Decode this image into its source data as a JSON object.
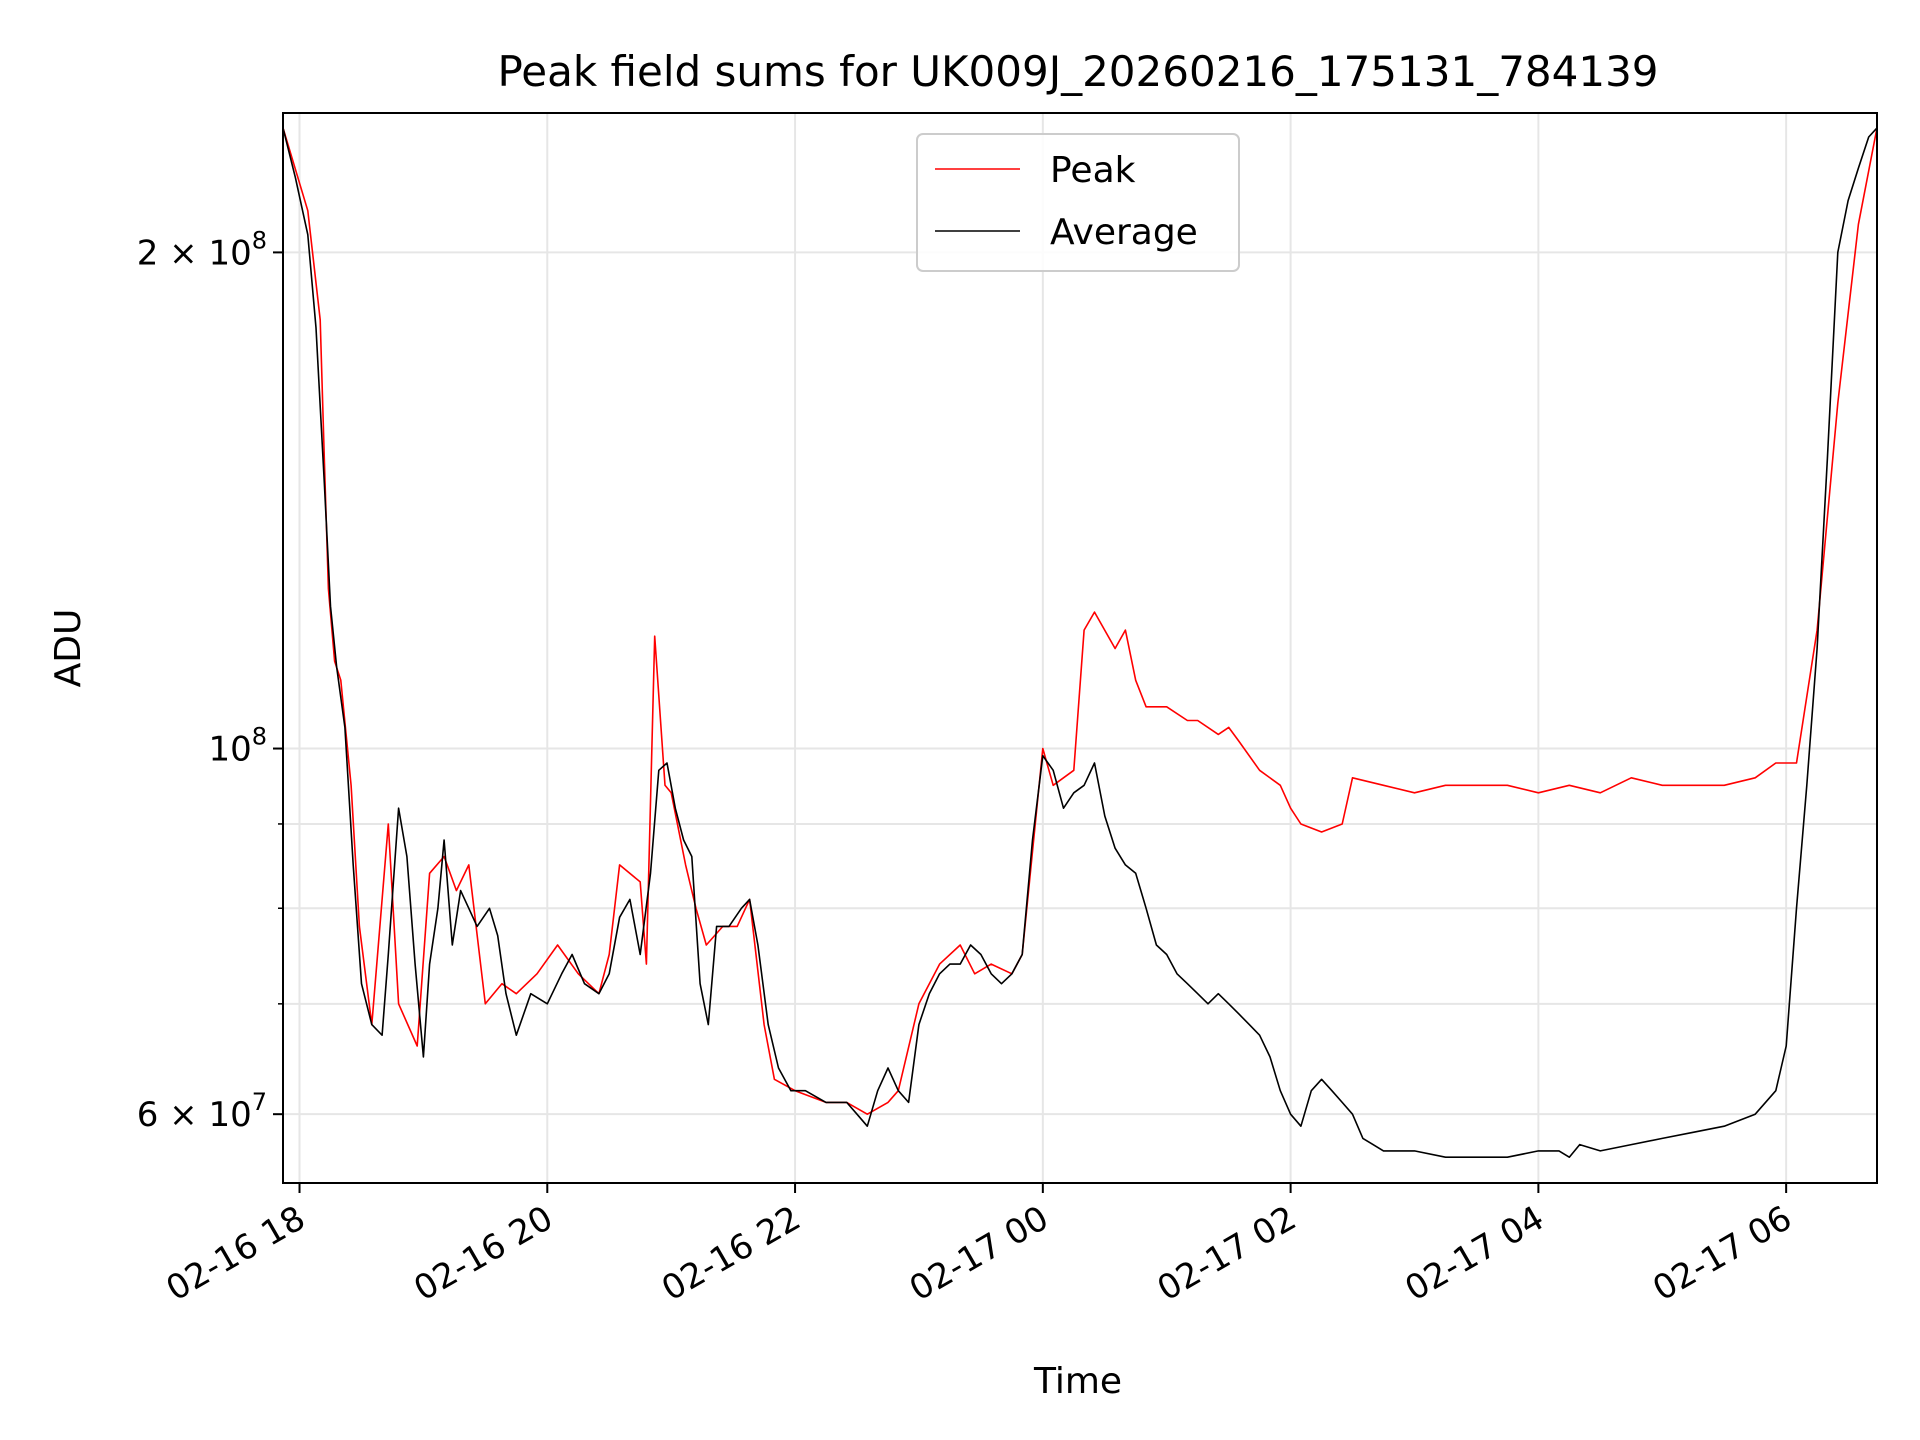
{
  "colors": {
    "peak": "#ff0000",
    "average": "#000000",
    "grid": "#e6e6e6",
    "axis": "#000000",
    "legend_border": "#cccccc"
  },
  "chart_data": {
    "type": "line",
    "title": "Peak field sums for UK009J_20260216_175131_784139",
    "xlabel": "Time",
    "ylabel": "ADU",
    "y_scale": "log",
    "grid": true,
    "legend_position": "upper center",
    "xlim": [
      "02-16 17:52",
      "02-17 06:44"
    ],
    "ylim": [
      54500000,
      243000000
    ],
    "x_ticks": [
      {
        "at": "02-16 18:00",
        "label": "02-16 18"
      },
      {
        "at": "02-16 20:00",
        "label": "02-16 20"
      },
      {
        "at": "02-16 22:00",
        "label": "02-16 22"
      },
      {
        "at": "02-17 00:00",
        "label": "02-17 00"
      },
      {
        "at": "02-17 02:00",
        "label": "02-17 02"
      },
      {
        "at": "02-17 04:00",
        "label": "02-17 04"
      },
      {
        "at": "02-17 06:00",
        "label": "02-17 06"
      }
    ],
    "y_major_ticks": [
      {
        "value": 60000000,
        "label_mantissa": "6",
        "label_times": "×",
        "label_base": "10",
        "label_exp": "7"
      },
      {
        "value": 100000000,
        "label_mantissa": "",
        "label_times": "",
        "label_base": "10",
        "label_exp": "8"
      },
      {
        "value": 200000000,
        "label_mantissa": "2",
        "label_times": "×",
        "label_base": "10",
        "label_exp": "8"
      }
    ],
    "y_minor_ticks": [
      70000000,
      80000000,
      90000000
    ],
    "series": [
      {
        "name": "Peak",
        "color": "#ff0000",
        "x": [
          "02-16 17:52",
          "02-16 18:04",
          "02-16 18:10",
          "02-16 18:12",
          "02-16 18:14",
          "02-16 18:17",
          "02-16 18:20",
          "02-16 18:25",
          "02-16 18:29",
          "02-16 18:35",
          "02-16 18:43",
          "02-16 18:48",
          "02-16 18:57",
          "02-16 19:03",
          "02-16 19:10",
          "02-16 19:16",
          "02-16 19:22",
          "02-16 19:30",
          "02-16 19:38",
          "02-16 19:45",
          "02-16 19:55",
          "02-16 20:05",
          "02-16 20:15",
          "02-16 20:25",
          "02-16 20:30",
          "02-16 20:35",
          "02-16 20:45",
          "02-16 20:48",
          "02-16 20:52",
          "02-16 20:57",
          "02-16 21:00",
          "02-16 21:07",
          "02-16 21:12",
          "02-16 21:17",
          "02-16 21:25",
          "02-16 21:32",
          "02-16 21:38",
          "02-16 21:45",
          "02-16 21:50",
          "02-16 22:00",
          "02-16 22:15",
          "02-16 22:25",
          "02-16 22:35",
          "02-16 22:45",
          "02-16 22:50",
          "02-16 23:00",
          "02-16 23:10",
          "02-16 23:20",
          "02-16 23:27",
          "02-16 23:35",
          "02-16 23:45",
          "02-16 23:50",
          "02-17 00:00",
          "02-17 00:05",
          "02-17 00:15",
          "02-17 00:20",
          "02-17 00:25",
          "02-17 00:35",
          "02-17 00:40",
          "02-17 00:45",
          "02-17 00:50",
          "02-17 01:00",
          "02-17 01:10",
          "02-17 01:15",
          "02-17 01:25",
          "02-17 01:30",
          "02-17 01:35",
          "02-17 01:45",
          "02-17 01:55",
          "02-17 02:00",
          "02-17 02:05",
          "02-17 02:15",
          "02-17 02:25",
          "02-17 02:30",
          "02-17 02:45",
          "02-17 03:00",
          "02-17 03:15",
          "02-17 03:30",
          "02-17 03:45",
          "02-17 04:00",
          "02-17 04:15",
          "02-17 04:30",
          "02-17 04:45",
          "02-17 05:00",
          "02-17 05:15",
          "02-17 05:30",
          "02-17 05:45",
          "02-17 05:55",
          "02-17 06:05",
          "02-17 06:15",
          "02-17 06:25",
          "02-17 06:35",
          "02-17 06:44"
        ],
        "values": [
          238000000,
          212000000,
          182000000,
          150000000,
          125000000,
          113000000,
          110000000,
          95000000,
          78000000,
          68000000,
          90000000,
          70000000,
          66000000,
          84000000,
          86000000,
          82000000,
          85000000,
          70000000,
          72000000,
          71000000,
          73000000,
          76000000,
          73000000,
          71000000,
          75000000,
          85000000,
          83000000,
          74000000,
          117000000,
          95000000,
          94000000,
          85000000,
          80000000,
          76000000,
          78000000,
          78000000,
          81000000,
          68000000,
          63000000,
          62000000,
          61000000,
          61000000,
          60000000,
          61000000,
          62000000,
          70000000,
          74000000,
          76000000,
          73000000,
          74000000,
          73000000,
          75000000,
          100000000,
          95000000,
          97000000,
          118000000,
          121000000,
          115000000,
          118000000,
          110000000,
          106000000,
          106000000,
          104000000,
          104000000,
          102000000,
          103000000,
          101000000,
          97000000,
          95000000,
          92000000,
          90000000,
          89000000,
          90000000,
          96000000,
          95000000,
          94000000,
          95000000,
          95000000,
          95000000,
          94000000,
          95000000,
          94000000,
          96000000,
          95000000,
          95000000,
          95000000,
          96000000,
          98000000,
          98000000,
          118000000,
          162000000,
          208000000,
          238000000
        ]
      },
      {
        "name": "Average",
        "color": "#000000",
        "x": [
          "02-16 17:52",
          "02-16 17:58",
          "02-16 18:04",
          "02-16 18:08",
          "02-16 18:12",
          "02-16 18:15",
          "02-16 18:18",
          "02-16 18:22",
          "02-16 18:26",
          "02-16 18:30",
          "02-16 18:35",
          "02-16 18:40",
          "02-16 18:43",
          "02-16 18:48",
          "02-16 18:52",
          "02-16 18:56",
          "02-16 19:00",
          "02-16 19:03",
          "02-16 19:07",
          "02-16 19:10",
          "02-16 19:14",
          "02-16 19:18",
          "02-16 19:22",
          "02-16 19:26",
          "02-16 19:32",
          "02-16 19:36",
          "02-16 19:40",
          "02-16 19:45",
          "02-16 19:52",
          "02-16 20:00",
          "02-16 20:07",
          "02-16 20:12",
          "02-16 20:18",
          "02-16 20:25",
          "02-16 20:30",
          "02-16 20:35",
          "02-16 20:40",
          "02-16 20:45",
          "02-16 20:50",
          "02-16 20:54",
          "02-16 20:58",
          "02-16 21:02",
          "02-16 21:06",
          "02-16 21:10",
          "02-16 21:14",
          "02-16 21:18",
          "02-16 21:22",
          "02-16 21:28",
          "02-16 21:34",
          "02-16 21:38",
          "02-16 21:42",
          "02-16 21:47",
          "02-16 21:52",
          "02-16 21:58",
          "02-16 22:05",
          "02-16 22:15",
          "02-16 22:25",
          "02-16 22:30",
          "02-16 22:35",
          "02-16 22:40",
          "02-16 22:45",
          "02-16 22:50",
          "02-16 22:55",
          "02-16 23:00",
          "02-16 23:05",
          "02-16 23:10",
          "02-16 23:15",
          "02-16 23:20",
          "02-16 23:25",
          "02-16 23:30",
          "02-16 23:35",
          "02-16 23:40",
          "02-16 23:45",
          "02-16 23:50",
          "02-16 23:55",
          "02-17 00:00",
          "02-17 00:05",
          "02-17 00:10",
          "02-17 00:15",
          "02-17 00:20",
          "02-17 00:25",
          "02-17 00:30",
          "02-17 00:35",
          "02-17 00:40",
          "02-17 00:45",
          "02-17 00:50",
          "02-17 00:55",
          "02-17 01:00",
          "02-17 01:05",
          "02-17 01:10",
          "02-17 01:15",
          "02-17 01:20",
          "02-17 01:25",
          "02-17 01:30",
          "02-17 01:35",
          "02-17 01:40",
          "02-17 01:45",
          "02-17 01:50",
          "02-17 01:55",
          "02-17 02:00",
          "02-17 02:05",
          "02-17 02:10",
          "02-17 02:15",
          "02-17 02:20",
          "02-17 02:25",
          "02-17 02:30",
          "02-17 02:35",
          "02-17 02:45",
          "02-17 03:00",
          "02-17 03:15",
          "02-17 03:30",
          "02-17 03:45",
          "02-17 04:00",
          "02-17 04:10",
          "02-17 04:15",
          "02-17 04:20",
          "02-17 04:30",
          "02-17 04:45",
          "02-17 05:00",
          "02-17 05:15",
          "02-17 05:30",
          "02-17 05:45",
          "02-17 05:55",
          "02-17 06:00",
          "02-17 06:05",
          "02-17 06:10",
          "02-17 06:15",
          "02-17 06:20",
          "02-17 06:25",
          "02-17 06:30",
          "02-17 06:35",
          "02-17 06:40",
          "02-17 06:44"
        ],
        "values": [
          238000000,
          222000000,
          205000000,
          180000000,
          145000000,
          122000000,
          112000000,
          103000000,
          85000000,
          72000000,
          68000000,
          67000000,
          75000000,
          92000000,
          86000000,
          74000000,
          65000000,
          74000000,
          80000000,
          88000000,
          76000000,
          82000000,
          80000000,
          78000000,
          80000000,
          77000000,
          71000000,
          67000000,
          71000000,
          70000000,
          73000000,
          75000000,
          72000000,
          71000000,
          73000000,
          79000000,
          81000000,
          75000000,
          84000000,
          97000000,
          98000000,
          92000000,
          88000000,
          86000000,
          72000000,
          68000000,
          78000000,
          78000000,
          80000000,
          81000000,
          76000000,
          68000000,
          64000000,
          62000000,
          62000000,
          61000000,
          61000000,
          60000000,
          59000000,
          62000000,
          64000000,
          62000000,
          61000000,
          68000000,
          71000000,
          73000000,
          74000000,
          74000000,
          76000000,
          75000000,
          73000000,
          72000000,
          73000000,
          75000000,
          88000000,
          99000000,
          97000000,
          92000000,
          94000000,
          95000000,
          98000000,
          91000000,
          87000000,
          85000000,
          84000000,
          80000000,
          76000000,
          75000000,
          73000000,
          72000000,
          71000000,
          70000000,
          71000000,
          70000000,
          69000000,
          68000000,
          67000000,
          65000000,
          62000000,
          60000000,
          59000000,
          62000000,
          63000000,
          62000000,
          61000000,
          60000000,
          58000000,
          57000000,
          57000000,
          56500000,
          56500000,
          56500000,
          57000000,
          57000000,
          56500000,
          57500000,
          57000000,
          57500000,
          58000000,
          58500000,
          59000000,
          60000000,
          62000000,
          66000000,
          80000000,
          95000000,
          115000000,
          150000000,
          200000000,
          215000000,
          225000000,
          235000000,
          238000000
        ]
      }
    ]
  }
}
